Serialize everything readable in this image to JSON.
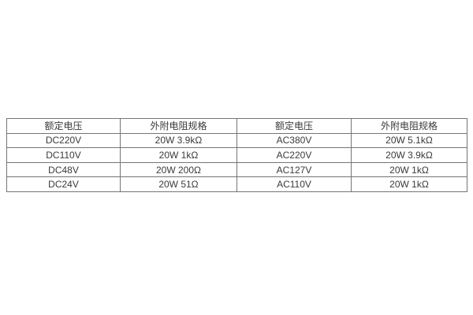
{
  "page": {
    "background_color": "#ffffff"
  },
  "table": {
    "border_color": "#757575",
    "text_color": "#3a3a3a",
    "headers": [
      "额定电压",
      "外附电阻规格",
      "额定电压",
      "外附电阻规格"
    ],
    "rows": [
      [
        "DC220V",
        "20W 3.9kΩ",
        "AC380V",
        "20W 5.1kΩ"
      ],
      [
        "DC110V",
        "20W 1kΩ",
        "AC220V",
        "20W 3.9kΩ"
      ],
      [
        "DC48V",
        "20W 200Ω",
        "AC127V",
        "20W 1kΩ"
      ],
      [
        "DC24V",
        "20W 51Ω",
        "AC110V",
        "20W 1kΩ"
      ]
    ]
  }
}
